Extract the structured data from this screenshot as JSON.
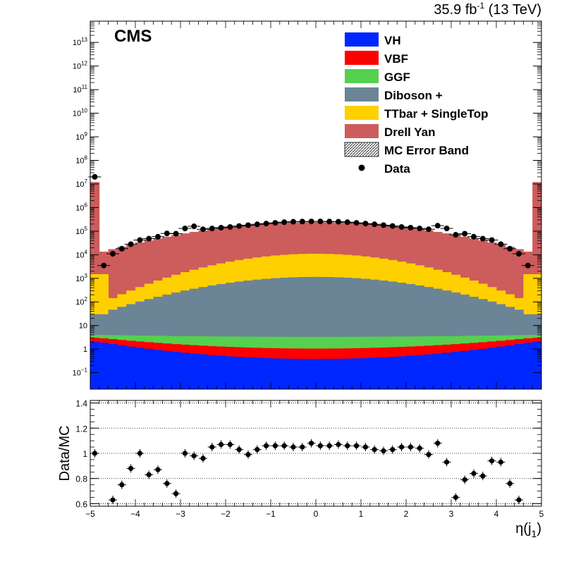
{
  "header": {
    "experiment": "CMS",
    "lumi_prefix": "35.9 fb",
    "lumi_exp": "-1",
    "lumi_suffix": " (13 TeV)"
  },
  "colors": {
    "VH": "#0026ff",
    "VBF": "#ff0000",
    "GGF": "#55d04f",
    "Diboson": "#6b8496",
    "TTbar": "#ffd000",
    "DY": "#cd5c5c"
  },
  "chart_data": [
    {
      "type": "bar",
      "stacked": true,
      "xlabel": "η(j1)",
      "xlabel_main": "η(j",
      "xlabel_sub": "1",
      "xlabel_close": ")",
      "ylabel": "",
      "yscale": "log",
      "xlim": [
        -5,
        5
      ],
      "ylim": [
        0.02,
        80000000000000
      ],
      "bin_width": 0.2,
      "x_ticks": [
        "−5",
        "−4",
        "−3",
        "−2",
        "−1",
        "0",
        "1",
        "2",
        "3",
        "4",
        "5"
      ],
      "y_ticks": [
        {
          "base": "10",
          "exp": "−1",
          "value": 0.1
        },
        {
          "base": "1",
          "exp": "",
          "value": 1
        },
        {
          "base": "10",
          "exp": "",
          "value": 10
        },
        {
          "base": "10",
          "exp": "2",
          "value": 100
        },
        {
          "base": "10",
          "exp": "3",
          "value": 1000
        },
        {
          "base": "10",
          "exp": "4",
          "value": 10000
        },
        {
          "base": "10",
          "exp": "5",
          "value": 100000
        },
        {
          "base": "10",
          "exp": "6",
          "value": 1000000
        },
        {
          "base": "10",
          "exp": "7",
          "value": 10000000
        },
        {
          "base": "10",
          "exp": "8",
          "value": 100000000
        },
        {
          "base": "10",
          "exp": "9",
          "value": 1000000000
        },
        {
          "base": "10",
          "exp": "10",
          "value": 10000000000
        },
        {
          "base": "10",
          "exp": "11",
          "value": 100000000000
        },
        {
          "base": "10",
          "exp": "12",
          "value": 1000000000000
        },
        {
          "base": "10",
          "exp": "13",
          "value": 10000000000000
        }
      ],
      "stack_tops": [
        {
          "name": "VH",
          "edge_value": 2,
          "center_value": 0.38
        },
        {
          "name": "VBF",
          "edge_value": 3,
          "center_value": 1.05
        },
        {
          "name": "GGF",
          "edge_value": 4,
          "center_value": 3.3
        },
        {
          "name": "Diboson +",
          "edge_value": 30,
          "center_value": 1150
        },
        {
          "name": "TTbar + SingleTop",
          "edge_value": 80,
          "center_value": 11000
        },
        {
          "name": "Drell Yan",
          "edge_value": 12000000,
          "center_value": 240000
        }
      ],
      "data_points": {
        "x": [
          -4.9,
          -4.7,
          -4.5,
          -4.3,
          -4.1,
          -3.9,
          -3.7,
          -3.5,
          -3.3,
          -3.1,
          -2.9,
          -2.7,
          -2.5,
          -2.3,
          -2.1,
          -1.9,
          -1.7,
          -1.5,
          -1.3,
          -1.1,
          -0.9,
          -0.7,
          -0.5,
          -0.3,
          -0.1,
          0.1,
          0.3,
          0.5,
          0.7,
          0.9,
          1.1,
          1.3,
          1.5,
          1.7,
          1.9,
          2.1,
          2.3,
          2.5,
          2.7,
          2.9,
          3.1,
          3.3,
          3.5,
          3.7,
          3.9,
          4.1,
          4.3,
          4.5,
          4.7,
          4.9
        ],
        "y": [
          20000000,
          3500,
          11000,
          18000,
          28000,
          42000,
          48000,
          58000,
          80000,
          78000,
          130000,
          160000,
          120000,
          130000,
          140000,
          150000,
          165000,
          180000,
          195000,
          210000,
          225000,
          240000,
          250000,
          255000,
          258000,
          258000,
          255000,
          250000,
          240000,
          225000,
          210000,
          195000,
          180000,
          165000,
          150000,
          140000,
          130000,
          120000,
          170000,
          130000,
          70000,
          78000,
          58000,
          48000,
          42000,
          28000,
          18000,
          11000,
          3500,
          null
        ]
      },
      "legend": {
        "position": "top-right",
        "entries": [
          {
            "label": "VH",
            "kind": "fill",
            "color": "#0026ff"
          },
          {
            "label": "VBF",
            "kind": "fill",
            "color": "#ff0000"
          },
          {
            "label": "GGF",
            "kind": "fill",
            "color": "#55d04f"
          },
          {
            "label": "Diboson +",
            "kind": "fill",
            "color": "#6b8496"
          },
          {
            "label": "TTbar + SingleTop",
            "kind": "fill",
            "color": "#ffd000"
          },
          {
            "label": "Drell Yan",
            "kind": "fill",
            "color": "#cd5c5c"
          },
          {
            "label": "MC Error Band",
            "kind": "hatch",
            "color": "#444444"
          },
          {
            "label": "Data",
            "kind": "marker",
            "color": "#000000"
          }
        ]
      }
    },
    {
      "type": "scatter",
      "ylabel": "Data/MC",
      "xlim": [
        -5,
        5
      ],
      "ylim": [
        0.58,
        1.42
      ],
      "y_ticks": [
        "0.6",
        "0.8",
        "1",
        "1.2",
        "1.4"
      ],
      "y_tick_values": [
        0.6,
        0.8,
        1.0,
        1.2,
        1.4
      ],
      "grid_y": true,
      "x": [
        -4.9,
        -4.5,
        -4.3,
        -4.1,
        -3.9,
        -3.7,
        -3.5,
        -3.3,
        -3.1,
        -2.9,
        -2.7,
        -2.5,
        -2.3,
        -2.1,
        -1.9,
        -1.7,
        -1.5,
        -1.3,
        -1.1,
        -0.9,
        -0.7,
        -0.5,
        -0.3,
        -0.1,
        0.1,
        0.3,
        0.5,
        0.7,
        0.9,
        1.1,
        1.3,
        1.5,
        1.7,
        1.9,
        2.1,
        2.3,
        2.5,
        2.7,
        2.9,
        3.1,
        3.3,
        3.5,
        3.7,
        3.9,
        4.1,
        4.3,
        4.5
      ],
      "y": [
        1.0,
        0.63,
        0.75,
        0.88,
        1.0,
        0.83,
        0.87,
        0.76,
        0.68,
        1.0,
        0.98,
        0.96,
        1.05,
        1.07,
        1.07,
        1.03,
        0.99,
        1.03,
        1.06,
        1.06,
        1.06,
        1.05,
        1.05,
        1.08,
        1.06,
        1.06,
        1.07,
        1.06,
        1.06,
        1.05,
        1.03,
        1.02,
        1.03,
        1.05,
        1.05,
        1.04,
        0.99,
        1.08,
        0.93,
        0.65,
        0.79,
        0.84,
        0.82,
        0.94,
        0.93,
        0.76,
        0.63
      ]
    }
  ]
}
